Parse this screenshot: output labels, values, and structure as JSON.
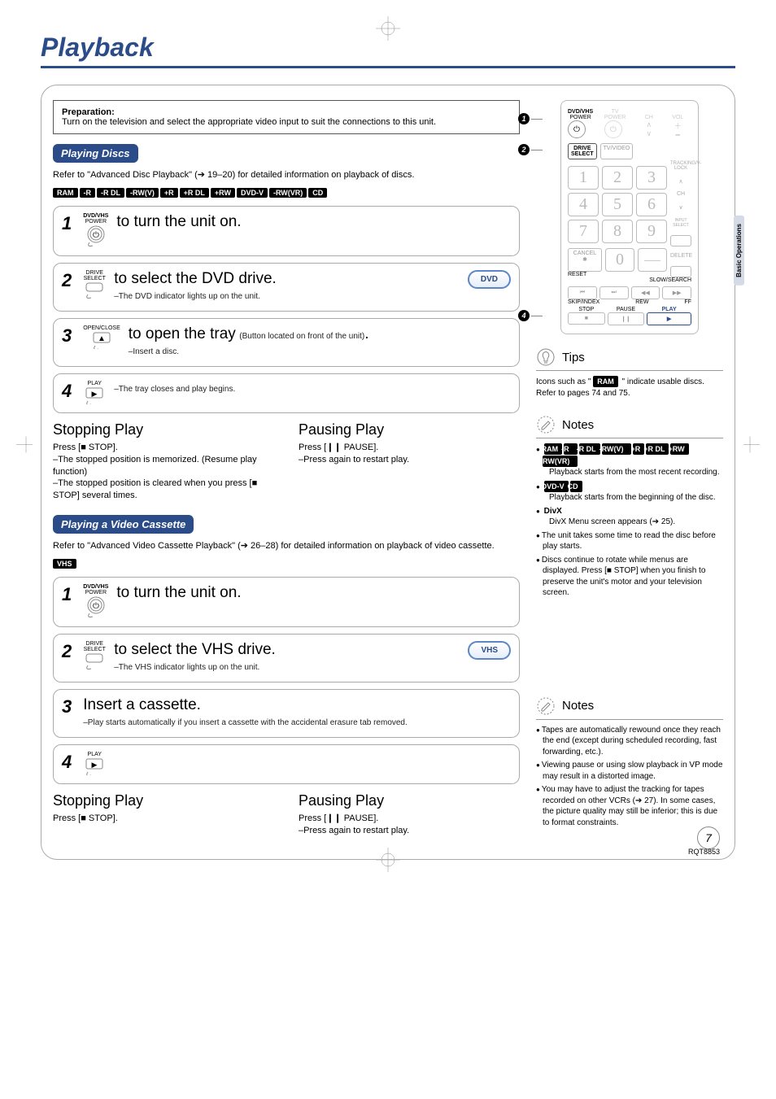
{
  "page_title": "Playback",
  "category_tab": "Basic Operations",
  "preparation": {
    "heading": "Preparation:",
    "text": "Turn on the television and select the appropriate video input to suit the connections to this unit."
  },
  "section_playing_discs": {
    "heading": "Playing Discs",
    "intro": "Refer to \"Advanced Disc Playback\" (➔ 19–20) for detailed information on playback of discs.",
    "badges": [
      "RAM",
      "-R",
      "-R DL",
      "-RW(V)",
      "+R",
      "+R DL",
      "+RW",
      "DVD-V",
      "-RW(VR)",
      "CD"
    ],
    "steps": [
      {
        "num": "1",
        "icon_lines": [
          "DVD/VHS",
          "POWER"
        ],
        "title": "to turn the unit on.",
        "note": ""
      },
      {
        "num": "2",
        "icon_lines": [
          "DRIVE",
          "SELECT"
        ],
        "title": "to select the DVD drive.",
        "note": "–The DVD indicator lights up on the unit.",
        "pill": "DVD"
      },
      {
        "num": "3",
        "icon_lines": [
          "OPEN/CLOSE"
        ],
        "title": "to open the tray",
        "title_paren": "(Button located on front of the unit)",
        "title_after": ".",
        "note": "–Insert a disc."
      },
      {
        "num": "4",
        "icon_lines": [
          "PLAY"
        ],
        "title": "",
        "note": "–The tray closes and play begins."
      }
    ],
    "stopping": {
      "heading": "Stopping Play",
      "press": "Press [■ STOP].",
      "lines": [
        "–The stopped position is memorized. (Resume play function)",
        "–The stopped position is cleared when you press [■ STOP] several times."
      ]
    },
    "pausing": {
      "heading": "Pausing Play",
      "press": "Press [❙❙ PAUSE].",
      "lines": [
        "–Press again to restart play."
      ]
    }
  },
  "section_playing_vhs": {
    "heading": "Playing a Video Cassette",
    "intro": "Refer to \"Advanced Video Cassette Playback\" (➔ 26–28) for detailed information on playback of video cassette.",
    "badges": [
      "VHS"
    ],
    "steps": [
      {
        "num": "1",
        "icon_lines": [
          "DVD/VHS",
          "POWER"
        ],
        "title": "to turn the unit on.",
        "note": ""
      },
      {
        "num": "2",
        "icon_lines": [
          "DRIVE",
          "SELECT"
        ],
        "title": "to select the VHS drive.",
        "note": "–The VHS indicator lights up on the unit.",
        "pill": "VHS"
      },
      {
        "num": "3",
        "title": "Insert a cassette.",
        "note": "–Play starts automatically if you insert a cassette with the accidental erasure tab removed."
      },
      {
        "num": "4",
        "icon_lines": [
          "PLAY"
        ],
        "title": "",
        "note": ""
      }
    ],
    "stopping": {
      "heading": "Stopping Play",
      "press": "Press [■ STOP]."
    },
    "pausing": {
      "heading": "Pausing Play",
      "press": "Press [❙❙ PAUSE].",
      "lines": [
        "–Press again to restart play."
      ]
    }
  },
  "remote": {
    "callouts": [
      "1",
      "2",
      "4"
    ],
    "top_labels": [
      "DVD/VHS",
      "POWER",
      "TV",
      "POWER",
      "TV/VIDEO",
      "CH",
      "VOL"
    ],
    "drive_select": "DRIVE\nSELECT",
    "numbers": [
      "1",
      "2",
      "3",
      "4",
      "5",
      "6",
      "7",
      "8",
      "9",
      "0"
    ],
    "side_labels_right": [
      "TRACKING/V-LOCK",
      "∧",
      "CH",
      "∨",
      "INPUT SELECT",
      "DELETE"
    ],
    "cancel": "CANCEL\n✱",
    "reset": "RESET",
    "slow_search": "SLOW/SEARCH",
    "skip_index": "SKIP/INDEX",
    "rew_ff": [
      "REW",
      "FF"
    ],
    "transport": [
      "STOP",
      "PAUSE",
      "PLAY"
    ]
  },
  "tips": {
    "heading": "Tips",
    "text_before": "Icons such as \" ",
    "badge": "RAM",
    "text_after": " \" indicate usable discs. Refer to pages 74 and 75."
  },
  "notes1": {
    "heading": "Notes",
    "group1_badges": [
      "RAM",
      "-R",
      "-R DL",
      "-RW(V)",
      "+R",
      "+R DL",
      "+RW",
      "-RW(VR)"
    ],
    "group1_text": "Playback starts from the most recent recording.",
    "group2_badges": [
      "DVD-V",
      "CD"
    ],
    "group2_text": "Playback starts from the beginning of the disc.",
    "divx_label": "DivX",
    "divx_text": "DivX Menu screen appears (➔ 25).",
    "items": [
      "The unit takes some time to read the disc before play starts.",
      "Discs continue to rotate while menus are displayed. Press [■ STOP] when you finish to preserve the unit's motor and your television screen."
    ]
  },
  "notes2": {
    "heading": "Notes",
    "items": [
      "Tapes are automatically rewound once they reach the end (except during scheduled recording, fast forwarding, etc.).",
      "Viewing pause or using slow playback in VP mode may result in a distorted image.",
      "You may have to adjust the tracking for tapes recorded on other VCRs (➔ 27). In some cases, the picture quality may still be inferior; this is due to format constraints."
    ]
  },
  "page_number": "7",
  "footer_code": "RQT8853",
  "colors": {
    "brand": "#2b4c88",
    "badge_bg": "#000",
    "border": "#aaa"
  }
}
